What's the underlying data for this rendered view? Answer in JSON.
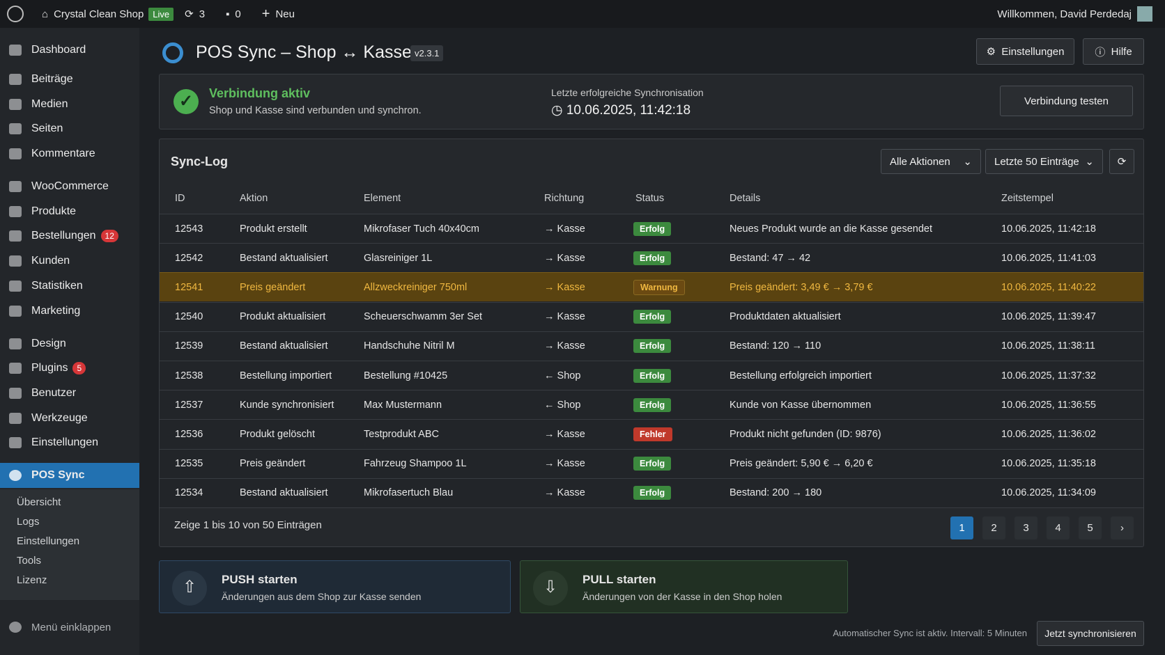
{
  "admin_bar": {
    "site_name": "Crystal Clean Shop",
    "live_badge": "Live",
    "updates": "3",
    "comments": "0",
    "new": "Neu",
    "greeting": "Willkommen, David Perdedaj"
  },
  "sidebar": {
    "items": [
      {
        "label": "Dashboard"
      },
      {
        "label": "Beiträge"
      },
      {
        "label": "Medien"
      },
      {
        "label": "Seiten"
      },
      {
        "label": "Kommentare"
      },
      {
        "label": "WooCommerce"
      },
      {
        "label": "Produkte"
      },
      {
        "label": "Bestellungen",
        "badge": "12"
      },
      {
        "label": "Kunden"
      },
      {
        "label": "Statistiken"
      },
      {
        "label": "Marketing"
      },
      {
        "label": "Design"
      },
      {
        "label": "Plugins",
        "badge": "5"
      },
      {
        "label": "Benutzer"
      },
      {
        "label": "Werkzeuge"
      },
      {
        "label": "Einstellungen"
      },
      {
        "label": "POS Sync",
        "active": true
      }
    ],
    "submenu": [
      "Übersicht",
      "Logs",
      "Einstellungen",
      "Tools",
      "Lizenz"
    ],
    "collapse": "Menü einklappen"
  },
  "header": {
    "title": "POS Sync – Shop ↔ Kasse",
    "version": "v2.3.1",
    "buttons": [
      "Einstellungen",
      "Hilfe"
    ]
  },
  "status": {
    "title": "Verbindung aktiv",
    "text": "Shop und Kasse sind verbunden und synchron.",
    "last_sync_label": "Letzte erfolgreiche Synchronisation",
    "last_sync_value": "10.06.2025, 11:42:18",
    "button": "Verbindung testen"
  },
  "log": {
    "title": "Sync-Log",
    "filters": [
      "Alle Aktionen",
      "Letzte 50 Einträge"
    ],
    "columns": [
      "ID",
      "Aktion",
      "Element",
      "Richtung",
      "Status",
      "Details",
      "Zeitstempel"
    ],
    "rows": [
      {
        "cells": [
          "12543",
          "Produkt erstellt",
          "Mikrofaser Tuch 40x40cm",
          "→ Kasse",
          "Erfolg",
          "Neues Produkt wurde an die Kasse gesendet",
          "10.06.2025, 11:42:18"
        ],
        "status_color": "#3c8a3e"
      },
      {
        "cells": [
          "12542",
          "Bestand aktualisiert",
          "Glasreiniger 1L",
          "→ Kasse",
          "Erfolg",
          "Bestand: 47 → 42",
          "10.06.2025, 11:41:03"
        ],
        "status_color": "#3c8a3e"
      },
      {
        "cells": [
          "12541",
          "Preis geändert",
          "Allzweckreiniger 750ml",
          "→ Kasse",
          "Warnung",
          "Preis geändert: 3,49 € → 3,79 €",
          "10.06.2025, 11:40:22"
        ],
        "status_color": "#6b4a12",
        "highlight": true
      },
      {
        "cells": [
          "12540",
          "Produkt aktualisiert",
          "Scheuerschwamm 3er Set",
          "→ Kasse",
          "Erfolg",
          "Produktdaten aktualisiert",
          "10.06.2025, 11:39:47"
        ],
        "status_color": "#3c8a3e"
      },
      {
        "cells": [
          "12539",
          "Bestand aktualisiert",
          "Handschuhe Nitril M",
          "→ Kasse",
          "Erfolg",
          "Bestand: 120 → 110",
          "10.06.2025, 11:38:11"
        ],
        "status_color": "#3c8a3e"
      },
      {
        "cells": [
          "12538",
          "Bestellung importiert",
          "Bestellung #10425",
          "← Shop",
          "Erfolg",
          "Bestellung erfolgreich importiert",
          "10.06.2025, 11:37:32"
        ],
        "status_color": "#3c8a3e"
      },
      {
        "cells": [
          "12537",
          "Kunde synchronisiert",
          "Max Mustermann",
          "← Shop",
          "Erfolg",
          "Kunde von Kasse übernommen",
          "10.06.2025, 11:36:55"
        ],
        "status_color": "#3c8a3e"
      },
      {
        "cells": [
          "12536",
          "Produkt gelöscht",
          "Testprodukt ABC",
          "→ Kasse",
          "Fehler",
          "Produkt nicht gefunden (ID: 9876)",
          "10.06.2025, 11:36:02"
        ],
        "status_color": "#c0392b"
      },
      {
        "cells": [
          "12535",
          "Preis geändert",
          "Fahrzeug Shampoo 1L",
          "→ Kasse",
          "Erfolg",
          "Preis geändert: 5,90 € → 6,20 €",
          "10.06.2025, 11:35:18"
        ],
        "status_color": "#3c8a3e"
      },
      {
        "cells": [
          "12534",
          "Bestand aktualisiert",
          "Mikrofasertuch Blau",
          "→ Kasse",
          "Erfolg",
          "Bestand: 200 → 180",
          "10.06.2025, 11:34:09"
        ],
        "status_color": "#3c8a3e"
      }
    ],
    "summary": "Zeige 1 bis 10 von 50 Einträgen",
    "pages": [
      1,
      2,
      3,
      4,
      5
    ],
    "current_page": 1,
    "next": "›"
  },
  "actions": [
    {
      "title": "PUSH starten",
      "text": "Änderungen aus dem Shop zur Kasse senden"
    },
    {
      "title": "PULL starten",
      "text": "Änderungen von der Kasse in den Shop holen"
    }
  ],
  "footer": {
    "auto_text": "Automatischer Sync ist aktiv. Intervall: 5 Minuten",
    "button": "Jetzt synchronisieren"
  }
}
